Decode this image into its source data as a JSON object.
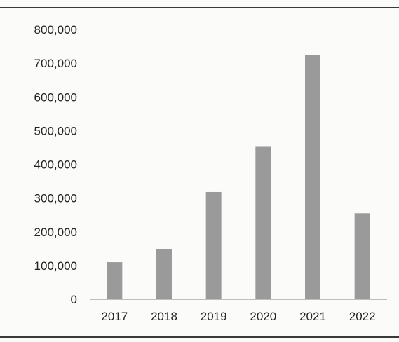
{
  "chart_data": {
    "type": "bar",
    "title": "",
    "xlabel": "",
    "ylabel": "",
    "categories": [
      "2017",
      "2018",
      "2019",
      "2020",
      "2021",
      "2022"
    ],
    "values": [
      110000,
      148000,
      318000,
      452000,
      725000,
      255000
    ],
    "ylim": [
      0,
      800000
    ],
    "yticks": [
      0,
      100000,
      200000,
      300000,
      400000,
      500000,
      600000,
      700000,
      800000
    ],
    "ytick_labels": [
      "0",
      "100,000",
      "200,000",
      "300,000",
      "400,000",
      "500,000",
      "600,000",
      "700,000",
      "800,000"
    ],
    "grid": false,
    "legend": "none",
    "colors": {
      "bar": "#9a9a9a",
      "axis": "#aaaaaa",
      "text": "#222222"
    }
  }
}
